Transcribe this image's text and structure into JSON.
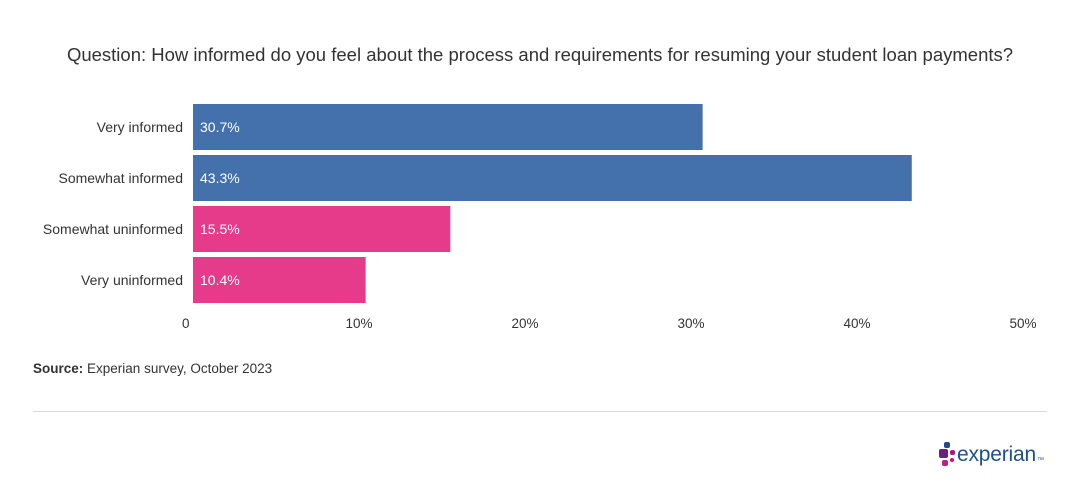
{
  "title": "Question: How informed do you feel about the process and requirements for resuming your student loan payments?",
  "source": {
    "label": "Source:",
    "text": "Experian survey, October 2023"
  },
  "logo": {
    "text": "experian",
    "tm": "™",
    "icon": "experian-logo-icon"
  },
  "colors": {
    "informed": "#4470ab",
    "uninformed": "#e63a8a"
  },
  "chart_data": {
    "type": "bar",
    "orientation": "horizontal",
    "title": "Question: How informed do you feel about the process and requirements for resuming your student loan payments?",
    "categories": [
      "Very informed",
      "Somewhat informed",
      "Somewhat uninformed",
      "Very uninformed"
    ],
    "values": [
      30.7,
      43.3,
      15.5,
      10.4
    ],
    "value_labels": [
      "30.7%",
      "43.3%",
      "15.5%",
      "10.4%"
    ],
    "bar_colors": [
      "#4470ab",
      "#4470ab",
      "#e63a8a",
      "#e63a8a"
    ],
    "xlim": [
      0,
      50
    ],
    "x_ticks": [
      0,
      10,
      20,
      30,
      40,
      50
    ],
    "x_tick_labels": [
      "0",
      "10%",
      "20%",
      "30%",
      "40%",
      "50%"
    ],
    "xlabel": "",
    "ylabel": "",
    "grid": false,
    "legend": "none"
  }
}
